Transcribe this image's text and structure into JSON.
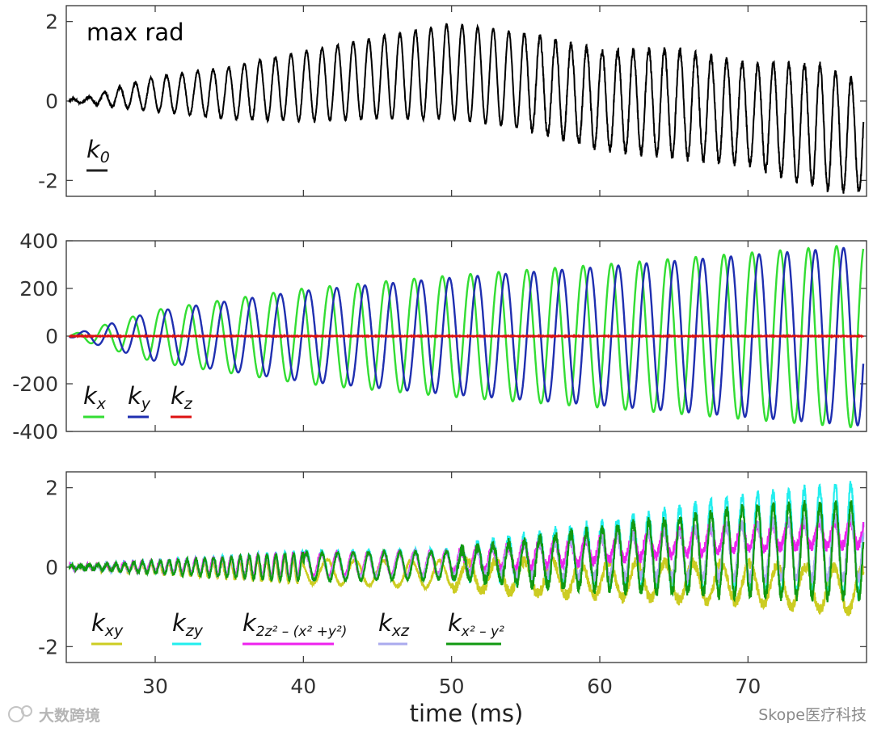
{
  "chart_data": [
    {
      "type": "line",
      "annotation": "max rad",
      "xlim": [
        24,
        78
      ],
      "ylim": [
        -2.4,
        2.4
      ],
      "yticks": [
        "-2",
        "0",
        "2"
      ],
      "series": [
        {
          "name": "k_0",
          "color": "#000000",
          "shape": "growing oscillation ~1.05 ms period, amplitude 0 → ~2, drifting negative after 55 ms",
          "x": [
            25,
            30,
            35,
            40,
            45,
            50,
            55,
            60,
            65,
            70,
            75,
            77.5
          ],
          "peak_values": [
            0.05,
            0.6,
            0.85,
            1.25,
            1.6,
            1.95,
            1.7,
            1.25,
            1.3,
            0.95,
            0.9,
            0.5
          ],
          "trough_values": [
            -0.05,
            -0.25,
            -0.45,
            -0.5,
            -0.45,
            -0.45,
            -0.7,
            -1.2,
            -1.4,
            -1.6,
            -2.2,
            -2.3
          ]
        }
      ],
      "legend": [
        {
          "label": "k",
          "sub": "0",
          "color": "#222222"
        }
      ]
    },
    {
      "type": "line",
      "xlim": [
        24,
        78
      ],
      "ylim": [
        -400,
        400
      ],
      "yticks": [
        "-400",
        "-200",
        "0",
        "200",
        "400"
      ],
      "series": [
        {
          "name": "k_x",
          "color": "#33dd33",
          "x": [
            24,
            30,
            40,
            50,
            60,
            70,
            77.5
          ],
          "amplitude": [
            0,
            110,
            200,
            255,
            300,
            350,
            385
          ]
        },
        {
          "name": "k_y",
          "color": "#1f2fb0",
          "x": [
            24,
            30,
            40,
            50,
            60,
            70,
            77.5
          ],
          "amplitude": [
            0,
            105,
            190,
            245,
            290,
            340,
            375
          ]
        },
        {
          "name": "k_z",
          "color": "#dd1111",
          "x": [
            24,
            77.5
          ],
          "values": [
            0,
            0
          ]
        }
      ],
      "legend": [
        {
          "label": "k",
          "sub": "x",
          "color": "#33dd33"
        },
        {
          "label": "k",
          "sub": "y",
          "color": "#1f2fb0"
        },
        {
          "label": "k",
          "sub": "z",
          "color": "#dd1111"
        }
      ]
    },
    {
      "type": "line",
      "xlim": [
        24,
        78
      ],
      "ylim": [
        -2.4,
        2.4
      ],
      "yticks": [
        "-2",
        "0",
        "2"
      ],
      "xticks": [
        "30",
        "40",
        "50",
        "60",
        "70"
      ],
      "xlabel": "time (ms)",
      "series": [
        {
          "name": "k_xy",
          "color": "#cccc22",
          "x": [
            25,
            40,
            50,
            60,
            70,
            77.5
          ],
          "center": [
            0,
            -0.1,
            -0.2,
            -0.3,
            -0.4,
            -0.6
          ],
          "amplitude": [
            0.05,
            0.3,
            0.35,
            0.45,
            0.5,
            0.55
          ]
        },
        {
          "name": "k_zy",
          "color": "#22eeee",
          "x": [
            25,
            40,
            50,
            60,
            70,
            77.5
          ],
          "center": [
            0,
            0.05,
            0.1,
            0.3,
            0.6,
            0.7
          ],
          "amplitude": [
            0.05,
            0.35,
            0.35,
            0.8,
            1.2,
            1.4
          ]
        },
        {
          "name": "k_2z2-(x2+y2)",
          "color": "#ee22ee",
          "x": [
            25,
            40,
            50,
            60,
            70,
            77.5
          ],
          "center": [
            0,
            0.05,
            0.1,
            0.45,
            0.75,
            0.85
          ],
          "amplitude": [
            0.05,
            0.3,
            0.3,
            0.3,
            0.3,
            0.3
          ]
        },
        {
          "name": "k_xz",
          "color": "#aaaaee",
          "x": [
            25,
            40,
            50,
            60,
            70,
            77.5
          ],
          "center": [
            0,
            0,
            0.1,
            0.25,
            0.4,
            0.5
          ],
          "amplitude": [
            0.05,
            0.3,
            0.3,
            0.5,
            0.7,
            0.8
          ]
        },
        {
          "name": "k_x2-y2",
          "color": "#119911",
          "x": [
            25,
            40,
            50,
            60,
            70,
            77.5
          ],
          "center": [
            0,
            0,
            0.05,
            0.2,
            0.4,
            0.4
          ],
          "amplitude": [
            0.05,
            0.35,
            0.35,
            0.75,
            1.1,
            1.2
          ]
        }
      ],
      "legend": [
        {
          "label": "k",
          "sub": "xy",
          "color": "#cccc22"
        },
        {
          "label": "k",
          "sub": "zy",
          "color": "#22eeee"
        },
        {
          "label": "k",
          "sub": "2z² – (x² +y²)",
          "color": "#ee22ee"
        },
        {
          "label": "k",
          "sub": "xz",
          "color": "#aaaaee"
        },
        {
          "label": "k",
          "sub": "x² – y²",
          "color": "#119911"
        }
      ]
    }
  ],
  "watermarks": {
    "left": "大数跨境",
    "right": "Skope医疗科技"
  }
}
